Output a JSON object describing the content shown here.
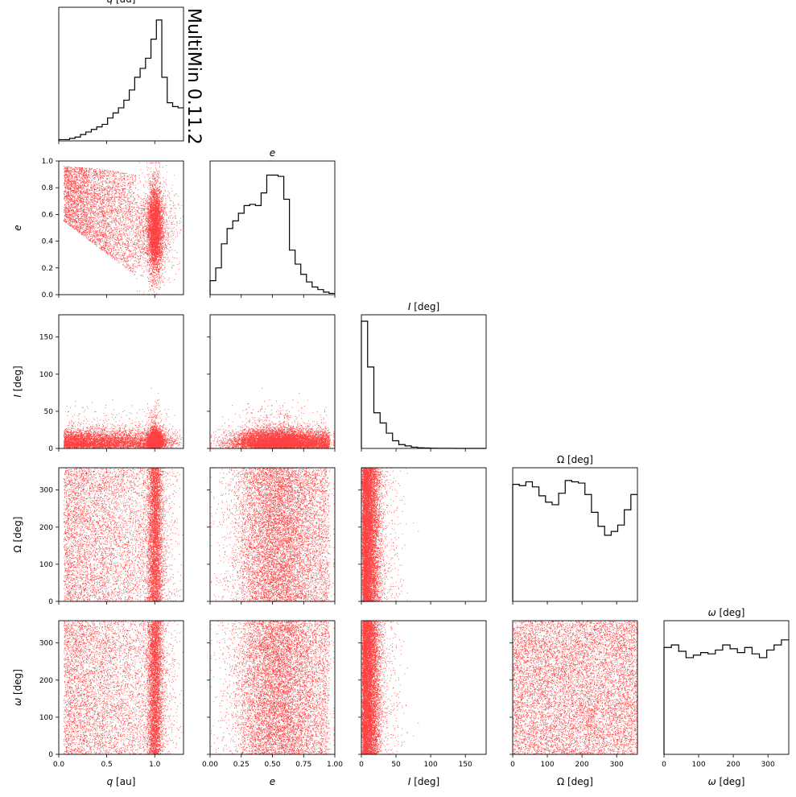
{
  "watermark": "MultiMin 0.11.2",
  "colors": {
    "scatter": "#ff0000",
    "hist": "#000000",
    "watermark": "#ffc0cb"
  },
  "chart_data": {
    "type": "corner",
    "variables": [
      {
        "key": "q",
        "label_sym": "q",
        "label_unit": " [au]",
        "range": [
          0,
          1.3
        ],
        "ticks": [
          0,
          0.5,
          1.0
        ],
        "tick_labels": [
          "0.0",
          "0.5",
          "1.0"
        ]
      },
      {
        "key": "e",
        "label_sym": "e",
        "label_unit": "",
        "range": [
          0,
          1
        ],
        "ticks": [
          0,
          0.25,
          0.5,
          0.75,
          1.0
        ],
        "tick_labels": [
          "0.00",
          "0.25",
          "0.50",
          "0.75",
          "1.00"
        ]
      },
      {
        "key": "I",
        "label_sym": "I",
        "label_unit": " [deg]",
        "range": [
          0,
          180
        ],
        "ticks": [
          0,
          50,
          100,
          150
        ],
        "tick_labels": [
          "0",
          "50",
          "100",
          "150"
        ]
      },
      {
        "key": "Omega",
        "label_sym": "Ω",
        "label_unit": " [deg]",
        "range": [
          0,
          360
        ],
        "ticks": [
          0,
          100,
          200,
          300
        ],
        "tick_labels": [
          "0",
          "100",
          "200",
          "300"
        ]
      },
      {
        "key": "omega",
        "label_sym": "ω",
        "label_unit": " [deg]",
        "range": [
          0,
          360
        ],
        "ticks": [
          0,
          100,
          200,
          300
        ],
        "tick_labels": [
          "0",
          "100",
          "200",
          "300"
        ]
      }
    ],
    "y_tick_labels": {
      "e": [
        "0.0",
        "0.2",
        "0.4",
        "0.6",
        "0.8",
        "1.0"
      ],
      "I": [
        "0",
        "50",
        "100",
        "150"
      ],
      "Omega": [
        "0",
        "100",
        "200",
        "300"
      ],
      "omega": [
        "0",
        "100",
        "200",
        "300"
      ]
    },
    "histograms": {
      "q": [
        0.01,
        0.01,
        0.02,
        0.03,
        0.05,
        0.07,
        0.09,
        0.11,
        0.13,
        0.18,
        0.22,
        0.26,
        0.32,
        0.4,
        0.5,
        0.57,
        0.65,
        0.8,
        0.95,
        0.5,
        0.3,
        0.27,
        0.26
      ],
      "e": [
        0.11,
        0.21,
        0.4,
        0.52,
        0.58,
        0.64,
        0.7,
        0.71,
        0.7,
        0.8,
        0.94,
        0.94,
        0.93,
        0.75,
        0.35,
        0.24,
        0.16,
        0.1,
        0.06,
        0.04,
        0.02,
        0.01
      ],
      "I": [
        1.0,
        0.64,
        0.28,
        0.2,
        0.12,
        0.06,
        0.03,
        0.02,
        0.01,
        0.005,
        0.003,
        0.002,
        0.001,
        0.001,
        0.001,
        0.0,
        0.0,
        0.0,
        0.0,
        0.0
      ],
      "Omega": [
        0.92,
        0.91,
        0.94,
        0.9,
        0.83,
        0.78,
        0.76,
        0.85,
        0.95,
        0.94,
        0.93,
        0.84,
        0.7,
        0.59,
        0.52,
        0.55,
        0.6,
        0.72,
        0.84
      ],
      "omega": [
        0.84,
        0.86,
        0.81,
        0.76,
        0.78,
        0.8,
        0.79,
        0.82,
        0.86,
        0.83,
        0.8,
        0.84,
        0.79,
        0.76,
        0.82,
        0.86,
        0.9
      ]
    },
    "scatter_description": {
      "color": "#ff0000",
      "q_peak": 1.0,
      "e_peak": 0.5,
      "I_scale_deg": 12
    },
    "grid": false,
    "legend": "none"
  }
}
